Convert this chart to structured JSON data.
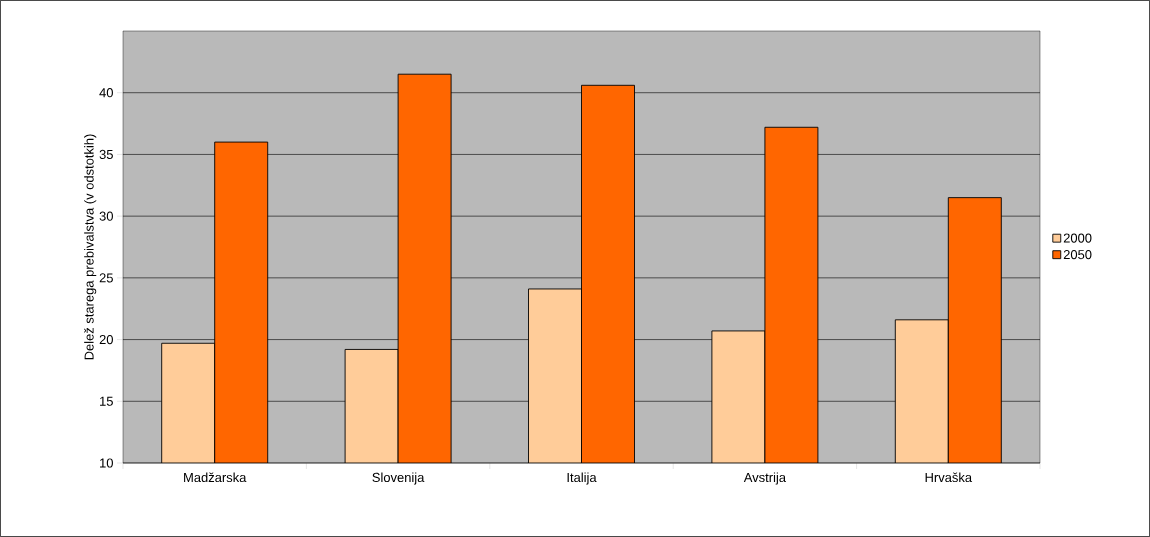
{
  "chart_data": {
    "type": "bar",
    "ylabel": "Delež starega prebivalstva (v odstotkih)",
    "categories": [
      "Madžarska",
      "Slovenija",
      "Italija",
      "Avstrija",
      "Hrvaška"
    ],
    "series": [
      {
        "name": "2000",
        "color": "#ffcc99",
        "values": [
          19.7,
          19.2,
          24.1,
          20.7,
          21.6
        ]
      },
      {
        "name": "2050",
        "color": "#ff6600",
        "values": [
          36.0,
          41.5,
          40.6,
          37.2,
          31.5
        ]
      }
    ],
    "ylim": [
      10,
      45
    ],
    "yticks": [
      10,
      15,
      20,
      25,
      30,
      35,
      40
    ],
    "grid": "y",
    "legend": "right"
  }
}
